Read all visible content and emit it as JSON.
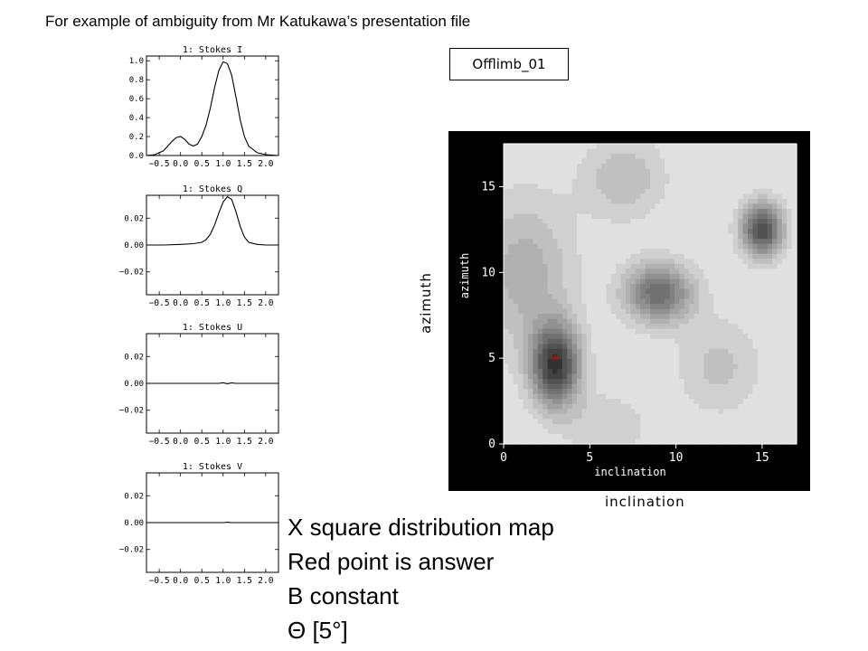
{
  "slide": {
    "title": "For example of ambiguity from Mr Katukawa’s presentation file",
    "case_label": "Offlimb_01",
    "outer_ylabel": "azimuth",
    "outer_xlabel": "inclination",
    "notes": [
      "X square distribution map",
      "Red point is answer",
      "B constant",
      "Θ [5°]"
    ]
  },
  "chart_data": [
    {
      "type": "line",
      "title": "1: Stokes I",
      "xlim": [
        -0.8,
        2.3
      ],
      "ylim": [
        0.0,
        1.05
      ],
      "xticks": [
        "−0.5",
        "0.0",
        "0.5",
        "1.0",
        "1.5",
        "2.0"
      ],
      "xtick_values": [
        -0.5,
        0.0,
        0.5,
        1.0,
        1.5,
        2.0
      ],
      "yticks": [
        "0.0",
        "0.2",
        "0.4",
        "0.6",
        "0.8",
        "1.0"
      ],
      "ytick_values": [
        0.0,
        0.2,
        0.4,
        0.6,
        0.8,
        1.0
      ],
      "x": [
        -0.8,
        -0.6,
        -0.4,
        -0.2,
        -0.1,
        0.0,
        0.1,
        0.2,
        0.3,
        0.4,
        0.5,
        0.6,
        0.7,
        0.8,
        0.9,
        1.0,
        1.1,
        1.2,
        1.3,
        1.4,
        1.5,
        1.6,
        1.8,
        2.0,
        2.3
      ],
      "y": [
        0.0,
        0.01,
        0.05,
        0.15,
        0.19,
        0.2,
        0.17,
        0.12,
        0.1,
        0.12,
        0.2,
        0.32,
        0.5,
        0.72,
        0.9,
        0.99,
        0.97,
        0.85,
        0.62,
        0.38,
        0.2,
        0.1,
        0.03,
        0.01,
        0.0
      ]
    },
    {
      "type": "line",
      "title": "1: Stokes Q",
      "xlim": [
        -0.8,
        2.3
      ],
      "ylim": [
        -0.037,
        0.037
      ],
      "xticks": [
        "−0.5",
        "0.0",
        "0.5",
        "1.0",
        "1.5",
        "2.0"
      ],
      "xtick_values": [
        -0.5,
        0.0,
        0.5,
        1.0,
        1.5,
        2.0
      ],
      "yticks": [
        "−0.02",
        "0.00",
        "0.02"
      ],
      "ytick_values": [
        -0.02,
        0.0,
        0.02
      ],
      "x": [
        -0.8,
        -0.4,
        0.0,
        0.3,
        0.5,
        0.6,
        0.7,
        0.8,
        0.9,
        1.0,
        1.1,
        1.2,
        1.3,
        1.4,
        1.5,
        1.6,
        1.8,
        2.0,
        2.3
      ],
      "y": [
        0.0,
        0.0,
        0.0005,
        0.001,
        0.002,
        0.004,
        0.008,
        0.015,
        0.024,
        0.032,
        0.036,
        0.034,
        0.025,
        0.014,
        0.006,
        0.002,
        0.0005,
        0.0,
        0.0
      ]
    },
    {
      "type": "line",
      "title": "1: Stokes U",
      "xlim": [
        -0.8,
        2.3
      ],
      "ylim": [
        -0.037,
        0.037
      ],
      "xticks": [
        "−0.5",
        "0.0",
        "0.5",
        "1.0",
        "1.5",
        "2.0"
      ],
      "xtick_values": [
        -0.5,
        0.0,
        0.5,
        1.0,
        1.5,
        2.0
      ],
      "yticks": [
        "−0.02",
        "0.00",
        "0.02"
      ],
      "ytick_values": [
        -0.02,
        0.0,
        0.02
      ],
      "x": [
        -0.8,
        0.0,
        0.9,
        1.0,
        1.1,
        1.2,
        1.3,
        2.3
      ],
      "y": [
        0.0,
        0.0,
        0.0,
        0.0005,
        -0.0003,
        0.0004,
        0.0,
        0.0
      ]
    },
    {
      "type": "line",
      "title": "1: Stokes V",
      "xlim": [
        -0.8,
        2.3
      ],
      "ylim": [
        -0.037,
        0.037
      ],
      "xticks": [
        "−0.5",
        "0.0",
        "0.5",
        "1.0",
        "1.5",
        "2.0"
      ],
      "xtick_values": [
        -0.5,
        0.0,
        0.5,
        1.0,
        1.5,
        2.0
      ],
      "yticks": [
        "−0.02",
        "0.00",
        "0.02"
      ],
      "ytick_values": [
        -0.02,
        0.0,
        0.02
      ],
      "x": [
        -0.8,
        1.0,
        1.1,
        1.2,
        2.3
      ],
      "y": [
        0.0,
        0.0,
        0.0003,
        0.0,
        0.0
      ]
    },
    {
      "type": "heatmap",
      "title": "",
      "xlabel": "inclination",
      "ylabel": "azimuth",
      "xlim": [
        0,
        17
      ],
      "ylim": [
        0,
        17.5
      ],
      "xticks": [
        "0",
        "5",
        "10",
        "15"
      ],
      "xtick_values": [
        0,
        5,
        10,
        15
      ],
      "yticks": [
        "0",
        "5",
        "10",
        "15"
      ],
      "ytick_values": [
        0,
        5,
        10,
        15
      ],
      "colormap": "grayscale, dark = low chi-square",
      "minima": [
        {
          "x": 3,
          "y": 4.6,
          "note": "deepest"
        },
        {
          "x": 9,
          "y": 8.8
        },
        {
          "x": 15,
          "y": 12.5
        }
      ],
      "answer_marker": {
        "x": 3,
        "y": 4.9,
        "color": "#e00000",
        "symbol": "*"
      }
    }
  ]
}
